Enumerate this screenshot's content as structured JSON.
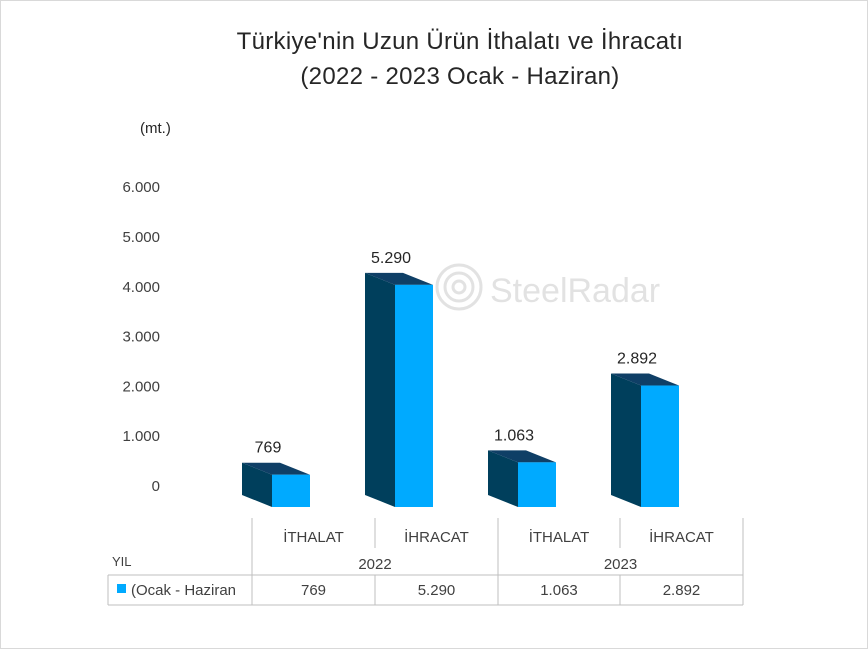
{
  "chart_data": {
    "type": "bar",
    "title_line1": "Türkiye'nin  Uzun Ürün İthalatı ve İhracatı",
    "title_line2": "(2022 - 2023 Ocak - Haziran)",
    "unit": "(mt.)",
    "y_ticks": [
      "6.000",
      "5.000",
      "4.000",
      "3.000",
      "2.000",
      "1.000",
      "0"
    ],
    "ylim": [
      0,
      6000
    ],
    "categories": [
      {
        "group": "2022",
        "label": "İTHALAT"
      },
      {
        "group": "2022",
        "label": "İHRACAT"
      },
      {
        "group": "2023",
        "label": "İTHALAT"
      },
      {
        "group": "2023",
        "label": "İHRACAT"
      }
    ],
    "groups": [
      "2022",
      "2023"
    ],
    "series": [
      {
        "name": "(Ocak - Haziran",
        "values": [
          769,
          5290,
          1063,
          2892
        ],
        "labels": [
          "769",
          "5.290",
          "1.063",
          "2.892"
        ]
      }
    ],
    "table_row_header": "YIL",
    "colors": {
      "front": "#00aaff",
      "side": "#003f5c",
      "top": "#0f3f66"
    },
    "watermark": "SteelRadar"
  }
}
